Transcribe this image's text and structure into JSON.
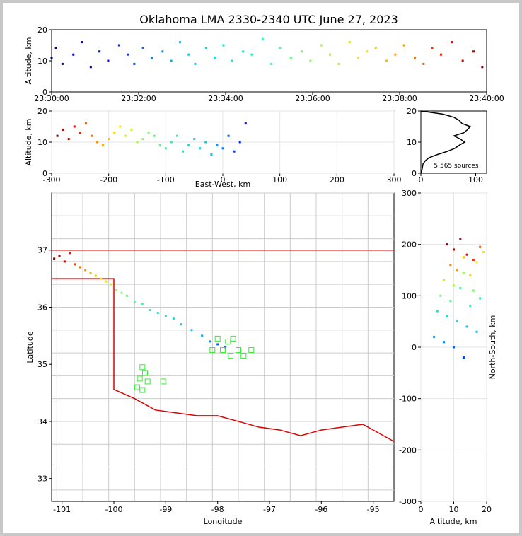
{
  "figure": {
    "title": "Oklahoma LMA 2330-2340 UTC June 27, 2023",
    "source_count_label": "5,565 sources"
  },
  "chart_data": [
    {
      "id": "time-height",
      "type": "scatter",
      "xlabel": "",
      "ylabel": "Altitude, km",
      "x_ticks": [
        "23:30:00",
        "23:32:00",
        "23:34:00",
        "23:36:00",
        "23:38:00",
        "23:40:00"
      ],
      "xlim_minutes": [
        0,
        10
      ],
      "ylim": [
        0,
        20
      ],
      "y_ticks": [
        0,
        10,
        20
      ],
      "color_by": "time",
      "series": [
        {
          "t_min": [
            0.0,
            0.1,
            0.25,
            0.5,
            0.7,
            0.9,
            1.1,
            1.3,
            1.55,
            1.75,
            1.9,
            2.1,
            2.3,
            2.55,
            2.75,
            2.95,
            3.15,
            3.3,
            3.55,
            3.75,
            3.95,
            4.15,
            4.4,
            4.6,
            4.85,
            5.05,
            5.25,
            5.5,
            5.75,
            5.95,
            6.2,
            6.4,
            6.6,
            6.85,
            7.05,
            7.25,
            7.45,
            7.7,
            7.9,
            8.1,
            8.35,
            8.55,
            8.75,
            8.95,
            9.2,
            9.45,
            9.7,
            9.9
          ],
          "alt_km": [
            11,
            14,
            9,
            12,
            16,
            8,
            13,
            10,
            15,
            12,
            9,
            14,
            11,
            13,
            10,
            16,
            12,
            9,
            14,
            11,
            15,
            10,
            13,
            12,
            17,
            9,
            14,
            11,
            13,
            10,
            15,
            12,
            9,
            16,
            11,
            13,
            14,
            10,
            12,
            15,
            11,
            9,
            14,
            12,
            16,
            10,
            13,
            8
          ]
        }
      ]
    },
    {
      "id": "east-west-altitude",
      "type": "scatter",
      "xlabel": "East-West, km",
      "ylabel": "Altitude, km",
      "xlim": [
        -300,
        300
      ],
      "ylim": [
        0,
        20
      ],
      "x_ticks": [
        -300,
        -200,
        -100,
        0,
        100,
        200,
        300
      ],
      "y_ticks": [
        0,
        10,
        20
      ],
      "series": [
        {
          "x_km": [
            -290,
            -280,
            -270,
            -260,
            -250,
            -240,
            -230,
            -220,
            -210,
            -200,
            -190,
            -180,
            -170,
            -160,
            -150,
            -140,
            -130,
            -120,
            -110,
            -100,
            -90,
            -80,
            -70,
            -60,
            -50,
            -40,
            -30,
            -20,
            -10,
            0,
            10,
            20,
            30,
            40
          ],
          "alt_km": [
            12,
            14,
            11,
            15,
            13,
            16,
            12,
            10,
            9,
            11,
            13,
            15,
            12,
            14,
            10,
            11,
            13,
            12,
            9,
            8,
            10,
            12,
            7,
            9,
            11,
            8,
            10,
            6,
            9,
            8,
            12,
            7,
            10,
            16
          ]
        }
      ]
    },
    {
      "id": "altitude-histogram",
      "type": "line",
      "xlabel": "",
      "ylabel": "",
      "xlim": [
        0,
        120
      ],
      "ylim": [
        0,
        20
      ],
      "x_ticks": [
        0,
        100
      ],
      "y_ticks": [
        0,
        10,
        20
      ],
      "series": [
        {
          "alt_km": [
            0,
            1,
            2,
            3,
            4,
            5,
            6,
            7,
            8,
            9,
            10,
            11,
            12,
            13,
            14,
            15,
            16,
            17,
            18,
            19,
            20
          ],
          "count": [
            0,
            2,
            3,
            4,
            8,
            15,
            30,
            48,
            62,
            70,
            80,
            72,
            60,
            78,
            85,
            90,
            75,
            70,
            60,
            40,
            0
          ]
        }
      ]
    },
    {
      "id": "plan-view-map",
      "type": "scatter",
      "xlabel": "Longitude",
      "ylabel": "Latitude",
      "xlim": [
        -101.2,
        -94.6
      ],
      "ylim": [
        32.6,
        38.0
      ],
      "x_ticks": [
        -101,
        -100,
        -99,
        -98,
        -97,
        -96,
        -95
      ],
      "y_ticks": [
        33,
        34,
        35,
        36,
        37
      ],
      "series": [
        {
          "name": "sources",
          "lon": [
            -101.15,
            -101.05,
            -100.95,
            -100.85,
            -100.75,
            -100.65,
            -100.55,
            -100.45,
            -100.35,
            -100.25,
            -100.15,
            -100.05,
            -99.95,
            -99.85,
            -99.75,
            -99.6,
            -99.45,
            -99.3,
            -99.15,
            -99.0,
            -98.85,
            -98.7,
            -98.5,
            -98.3,
            -98.15,
            -98.0,
            -97.85
          ],
          "lat": [
            36.85,
            36.9,
            36.8,
            36.95,
            36.75,
            36.7,
            36.65,
            36.6,
            36.55,
            36.5,
            36.45,
            36.4,
            36.3,
            36.25,
            36.2,
            36.1,
            36.05,
            35.95,
            35.9,
            35.85,
            35.8,
            35.7,
            35.6,
            35.5,
            35.4,
            35.35,
            35.3
          ]
        },
        {
          "name": "stations",
          "lon": [
            -97.7,
            -97.8,
            -98.0,
            -97.9,
            -98.1,
            -97.75,
            -97.5,
            -97.35,
            -97.6,
            -99.45,
            -99.4,
            -99.5,
            -99.35,
            -99.05,
            -99.55,
            -99.45
          ],
          "lat": [
            35.45,
            35.4,
            35.45,
            35.25,
            35.25,
            35.15,
            35.15,
            35.25,
            35.25,
            34.95,
            34.85,
            34.75,
            34.7,
            34.7,
            34.6,
            34.55
          ]
        }
      ]
    },
    {
      "id": "altitude-north-south",
      "type": "scatter",
      "xlabel": "Altitude, km",
      "ylabel": "North-South, km",
      "xlim": [
        0,
        20
      ],
      "ylim": [
        -300,
        300
      ],
      "x_ticks": [
        0,
        10,
        20
      ],
      "y_ticks": [
        -300,
        -200,
        -100,
        0,
        100,
        200,
        300
      ],
      "series": [
        {
          "alt_km": [
            8,
            10,
            12,
            14,
            16,
            18,
            9,
            11,
            13,
            15,
            17,
            19,
            7,
            10,
            13,
            16,
            6,
            9,
            12,
            15,
            18,
            5,
            8,
            11,
            14,
            17,
            4,
            7,
            10,
            13
          ],
          "ns_km": [
            200,
            190,
            210,
            180,
            170,
            195,
            160,
            150,
            175,
            140,
            165,
            185,
            130,
            120,
            145,
            110,
            100,
            90,
            115,
            80,
            95,
            70,
            60,
            50,
            40,
            30,
            20,
            10,
            0,
            -20
          ]
        }
      ]
    }
  ]
}
